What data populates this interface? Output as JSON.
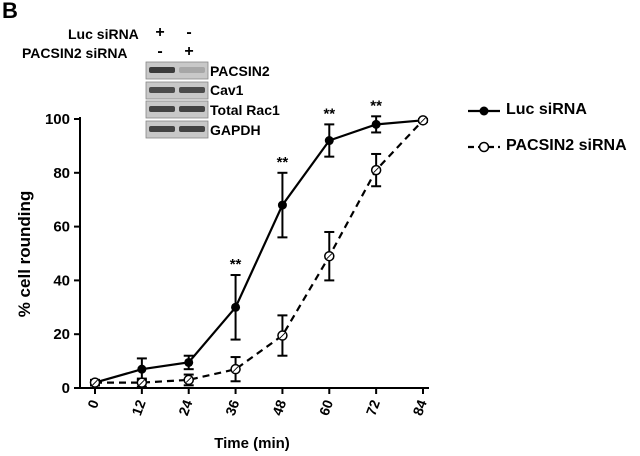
{
  "panel_letter": "B",
  "conditions": [
    {
      "label": "Luc siRNA",
      "lane1": "+",
      "lane2": "-"
    },
    {
      "label": "PACSIN2 siRNA",
      "lane1": "-",
      "lane2": "+"
    }
  ],
  "blots": [
    {
      "label": "PACSIN2",
      "lane1_intensity": 0.85,
      "lane2_intensity": 0.2
    },
    {
      "label": "Cav1",
      "lane1_intensity": 0.75,
      "lane2_intensity": 0.75
    },
    {
      "label": "Total Rac1",
      "lane1_intensity": 0.8,
      "lane2_intensity": 0.8
    },
    {
      "label": "GAPDH",
      "lane1_intensity": 0.8,
      "lane2_intensity": 0.8
    }
  ],
  "colors": {
    "line": "#000000",
    "blot_band": "#222222",
    "blot_bg": "#c8c8c8"
  },
  "chart_data": {
    "type": "line",
    "title": "",
    "xlabel": "Time (min)",
    "ylabel": "% cell rounding",
    "x": [
      0,
      12,
      24,
      36,
      48,
      60,
      72,
      84
    ],
    "xlim": [
      0,
      84
    ],
    "ylim": [
      0,
      100
    ],
    "yticks": [
      0,
      20,
      40,
      60,
      80,
      100
    ],
    "grid": false,
    "legend_position": "top-right",
    "series": [
      {
        "name": "Luc siRNA",
        "marker": "filled-circle",
        "line_style": "solid",
        "values": [
          2,
          7,
          9.5,
          30,
          68,
          92,
          98,
          99.5
        ],
        "errors": [
          1,
          4,
          2.5,
          12,
          12,
          6,
          3,
          0.5
        ]
      },
      {
        "name": "PACSIN2 siRNA",
        "marker": "open-circle",
        "line_style": "dashed",
        "values": [
          2,
          2,
          3,
          7,
          19.5,
          49,
          81,
          99.5
        ],
        "errors": [
          1,
          1.5,
          2,
          4.5,
          7.5,
          9,
          6,
          0.5
        ]
      }
    ],
    "significance": [
      {
        "x": 36,
        "label": "**"
      },
      {
        "x": 48,
        "label": "**"
      },
      {
        "x": 60,
        "label": "**"
      },
      {
        "x": 72,
        "label": "**"
      }
    ]
  }
}
